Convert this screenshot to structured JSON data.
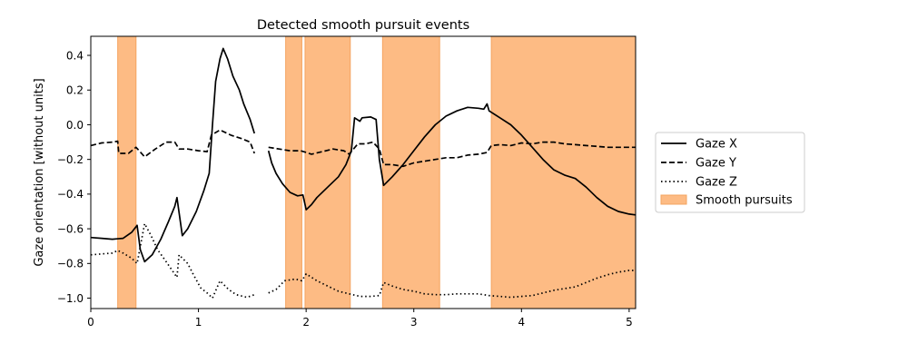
{
  "chart_data": {
    "type": "line",
    "title": "Detected smooth pursuit events",
    "xlabel": "",
    "ylabel": "Gaze orientation [without units]",
    "xlim": [
      0,
      5.06
    ],
    "ylim": [
      -1.06,
      0.51
    ],
    "xticks": [
      0,
      1,
      2,
      3,
      4,
      5
    ],
    "yticks": [
      -1.0,
      -0.8,
      -0.6,
      -0.4,
      -0.2,
      0.0,
      0.2,
      0.4
    ],
    "ytick_labels": [
      "−1.0",
      "−0.8",
      "−0.6",
      "−0.4",
      "−0.2",
      "0.0",
      "0.2",
      "0.4"
    ],
    "grid": false,
    "legend_position": "right",
    "pursuit_color": "#fdbb84",
    "pursuit_edge_color": "#f4a460",
    "smooth_pursuit_intervals": [
      [
        0.25,
        0.42
      ],
      [
        1.81,
        1.96
      ],
      [
        1.99,
        2.41
      ],
      [
        2.71,
        3.24
      ],
      [
        3.72,
        5.06
      ]
    ],
    "series": [
      {
        "name": "Gaze X",
        "style": "solid",
        "segments": [
          [
            [
              0,
              -0.65
            ],
            [
              0.1,
              -0.655
            ],
            [
              0.2,
              -0.66
            ],
            [
              0.3,
              -0.655
            ],
            [
              0.38,
              -0.62
            ],
            [
              0.43,
              -0.58
            ],
            [
              0.46,
              -0.72
            ],
            [
              0.5,
              -0.79
            ],
            [
              0.57,
              -0.75
            ],
            [
              0.65,
              -0.66
            ],
            [
              0.72,
              -0.56
            ],
            [
              0.78,
              -0.47
            ],
            [
              0.8,
              -0.42
            ],
            [
              0.85,
              -0.64
            ],
            [
              0.9,
              -0.6
            ],
            [
              0.98,
              -0.5
            ],
            [
              1.05,
              -0.38
            ],
            [
              1.1,
              -0.28
            ],
            [
              1.13,
              0.0
            ],
            [
              1.16,
              0.25
            ],
            [
              1.2,
              0.38
            ],
            [
              1.23,
              0.44
            ],
            [
              1.27,
              0.38
            ],
            [
              1.32,
              0.28
            ],
            [
              1.38,
              0.2
            ],
            [
              1.42,
              0.12
            ],
            [
              1.48,
              0.03
            ],
            [
              1.52,
              -0.05
            ]
          ],
          [
            [
              1.65,
              -0.15
            ],
            [
              1.68,
              -0.22
            ],
            [
              1.72,
              -0.28
            ],
            [
              1.78,
              -0.34
            ],
            [
              1.85,
              -0.39
            ],
            [
              1.92,
              -0.41
            ],
            [
              1.97,
              -0.405
            ],
            [
              2.0,
              -0.49
            ],
            [
              2.05,
              -0.46
            ],
            [
              2.1,
              -0.42
            ],
            [
              2.2,
              -0.36
            ],
            [
              2.3,
              -0.3
            ],
            [
              2.37,
              -0.23
            ],
            [
              2.42,
              -0.15
            ],
            [
              2.45,
              0.04
            ],
            [
              2.5,
              0.02
            ],
            [
              2.52,
              0.04
            ],
            [
              2.6,
              0.045
            ],
            [
              2.65,
              0.03
            ],
            [
              2.68,
              -0.2
            ],
            [
              2.72,
              -0.35
            ],
            [
              2.8,
              -0.3
            ],
            [
              2.9,
              -0.23
            ],
            [
              3.0,
              -0.15
            ],
            [
              3.1,
              -0.07
            ],
            [
              3.2,
              0.0
            ],
            [
              3.3,
              0.05
            ],
            [
              3.4,
              0.08
            ],
            [
              3.5,
              0.1
            ],
            [
              3.6,
              0.095
            ],
            [
              3.65,
              0.09
            ],
            [
              3.68,
              0.12
            ],
            [
              3.7,
              0.08
            ],
            [
              3.8,
              0.04
            ],
            [
              3.9,
              0.0
            ],
            [
              4.0,
              -0.06
            ],
            [
              4.1,
              -0.13
            ],
            [
              4.2,
              -0.2
            ],
            [
              4.3,
              -0.26
            ],
            [
              4.4,
              -0.29
            ],
            [
              4.5,
              -0.31
            ],
            [
              4.6,
              -0.36
            ],
            [
              4.7,
              -0.42
            ],
            [
              4.8,
              -0.47
            ],
            [
              4.9,
              -0.5
            ],
            [
              5.0,
              -0.515
            ],
            [
              5.06,
              -0.52
            ]
          ]
        ]
      },
      {
        "name": "Gaze Y",
        "style": "dashed",
        "segments": [
          [
            [
              0,
              -0.12
            ],
            [
              0.1,
              -0.105
            ],
            [
              0.2,
              -0.1
            ],
            [
              0.25,
              -0.095
            ],
            [
              0.26,
              -0.165
            ],
            [
              0.35,
              -0.165
            ],
            [
              0.42,
              -0.13
            ],
            [
              0.5,
              -0.185
            ],
            [
              0.6,
              -0.14
            ],
            [
              0.7,
              -0.1
            ],
            [
              0.78,
              -0.1
            ],
            [
              0.82,
              -0.14
            ],
            [
              0.9,
              -0.14
            ],
            [
              1.0,
              -0.15
            ],
            [
              1.08,
              -0.155
            ],
            [
              1.12,
              -0.06
            ],
            [
              1.2,
              -0.03
            ],
            [
              1.3,
              -0.06
            ],
            [
              1.4,
              -0.08
            ],
            [
              1.48,
              -0.1
            ],
            [
              1.52,
              -0.165
            ]
          ],
          [
            [
              1.65,
              -0.13
            ],
            [
              1.75,
              -0.14
            ],
            [
              1.85,
              -0.15
            ],
            [
              1.95,
              -0.15
            ],
            [
              2.05,
              -0.17
            ],
            [
              2.15,
              -0.155
            ],
            [
              2.25,
              -0.14
            ],
            [
              2.35,
              -0.15
            ],
            [
              2.4,
              -0.17
            ],
            [
              2.48,
              -0.11
            ],
            [
              2.55,
              -0.11
            ],
            [
              2.62,
              -0.1
            ],
            [
              2.68,
              -0.14
            ],
            [
              2.72,
              -0.23
            ],
            [
              2.8,
              -0.23
            ],
            [
              2.9,
              -0.24
            ],
            [
              3.0,
              -0.22
            ],
            [
              3.1,
              -0.21
            ],
            [
              3.2,
              -0.2
            ],
            [
              3.3,
              -0.19
            ],
            [
              3.4,
              -0.19
            ],
            [
              3.5,
              -0.175
            ],
            [
              3.6,
              -0.17
            ],
            [
              3.68,
              -0.16
            ],
            [
              3.72,
              -0.12
            ],
            [
              3.8,
              -0.115
            ],
            [
              3.9,
              -0.12
            ],
            [
              4.0,
              -0.105
            ],
            [
              4.1,
              -0.11
            ],
            [
              4.2,
              -0.1
            ],
            [
              4.3,
              -0.1
            ],
            [
              4.4,
              -0.11
            ],
            [
              4.5,
              -0.115
            ],
            [
              4.6,
              -0.12
            ],
            [
              4.7,
              -0.125
            ],
            [
              4.8,
              -0.13
            ],
            [
              4.9,
              -0.13
            ],
            [
              5.0,
              -0.13
            ],
            [
              5.06,
              -0.13
            ]
          ]
        ]
      },
      {
        "name": "Gaze Z",
        "style": "dotted",
        "segments": [
          [
            [
              0,
              -0.75
            ],
            [
              0.1,
              -0.745
            ],
            [
              0.2,
              -0.74
            ],
            [
              0.25,
              -0.725
            ],
            [
              0.3,
              -0.74
            ],
            [
              0.38,
              -0.77
            ],
            [
              0.43,
              -0.8
            ],
            [
              0.5,
              -0.57
            ],
            [
              0.56,
              -0.64
            ],
            [
              0.62,
              -0.72
            ],
            [
              0.7,
              -0.79
            ],
            [
              0.8,
              -0.88
            ],
            [
              0.82,
              -0.75
            ],
            [
              0.9,
              -0.8
            ],
            [
              0.95,
              -0.86
            ],
            [
              1.02,
              -0.94
            ],
            [
              1.08,
              -0.97
            ],
            [
              1.13,
              -1.0
            ],
            [
              1.2,
              -0.9
            ],
            [
              1.28,
              -0.95
            ],
            [
              1.35,
              -0.98
            ],
            [
              1.45,
              -0.995
            ],
            [
              1.52,
              -0.98
            ]
          ],
          [
            [
              1.65,
              -0.97
            ],
            [
              1.72,
              -0.95
            ],
            [
              1.8,
              -0.9
            ],
            [
              1.9,
              -0.89
            ],
            [
              1.96,
              -0.9
            ],
            [
              2.0,
              -0.86
            ],
            [
              2.1,
              -0.9
            ],
            [
              2.2,
              -0.93
            ],
            [
              2.3,
              -0.96
            ],
            [
              2.4,
              -0.975
            ],
            [
              2.5,
              -0.99
            ],
            [
              2.6,
              -0.99
            ],
            [
              2.68,
              -0.985
            ],
            [
              2.72,
              -0.91
            ],
            [
              2.8,
              -0.93
            ],
            [
              2.9,
              -0.95
            ],
            [
              3.0,
              -0.96
            ],
            [
              3.1,
              -0.975
            ],
            [
              3.2,
              -0.98
            ],
            [
              3.3,
              -0.98
            ],
            [
              3.4,
              -0.975
            ],
            [
              3.5,
              -0.975
            ],
            [
              3.6,
              -0.975
            ],
            [
              3.7,
              -0.985
            ],
            [
              3.8,
              -0.99
            ],
            [
              3.9,
              -0.995
            ],
            [
              4.0,
              -0.99
            ],
            [
              4.1,
              -0.985
            ],
            [
              4.2,
              -0.97
            ],
            [
              4.3,
              -0.955
            ],
            [
              4.4,
              -0.945
            ],
            [
              4.5,
              -0.935
            ],
            [
              4.6,
              -0.91
            ],
            [
              4.7,
              -0.885
            ],
            [
              4.8,
              -0.865
            ],
            [
              4.9,
              -0.85
            ],
            [
              5.0,
              -0.84
            ],
            [
              5.06,
              -0.84
            ]
          ]
        ]
      }
    ],
    "legend": [
      "Gaze X",
      "Gaze Y",
      "Gaze Z",
      "Smooth pursuits"
    ]
  }
}
